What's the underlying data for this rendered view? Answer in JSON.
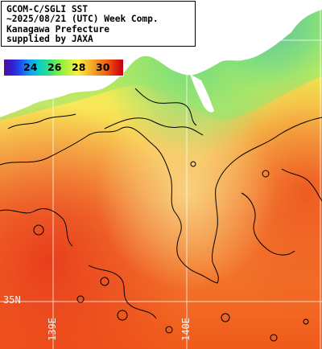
{
  "title_block": {
    "line1": "GCOM-C/SGLI SST",
    "line2": "~2025/08/21 (UTC) Week Comp.",
    "line3": "Kanagawa Prefecture",
    "line4": "supplied by JAXA"
  },
  "colorbar": {
    "ticks": [
      "24",
      "26",
      "28",
      "30"
    ],
    "stops": [
      "#5010a0",
      "#2050f0",
      "#10d0c0",
      "#80f040",
      "#f8f040",
      "#f09020",
      "#e02010",
      "#c00010"
    ]
  },
  "grid": {
    "lat_label": "35N",
    "lon_labels": [
      "139E",
      "140E"
    ]
  },
  "colors": {
    "land": "#ffffff",
    "contour": "#000000",
    "grid": "#ffffff",
    "warm_ocean": "#f05a10",
    "cool_coast": "#60d890"
  }
}
